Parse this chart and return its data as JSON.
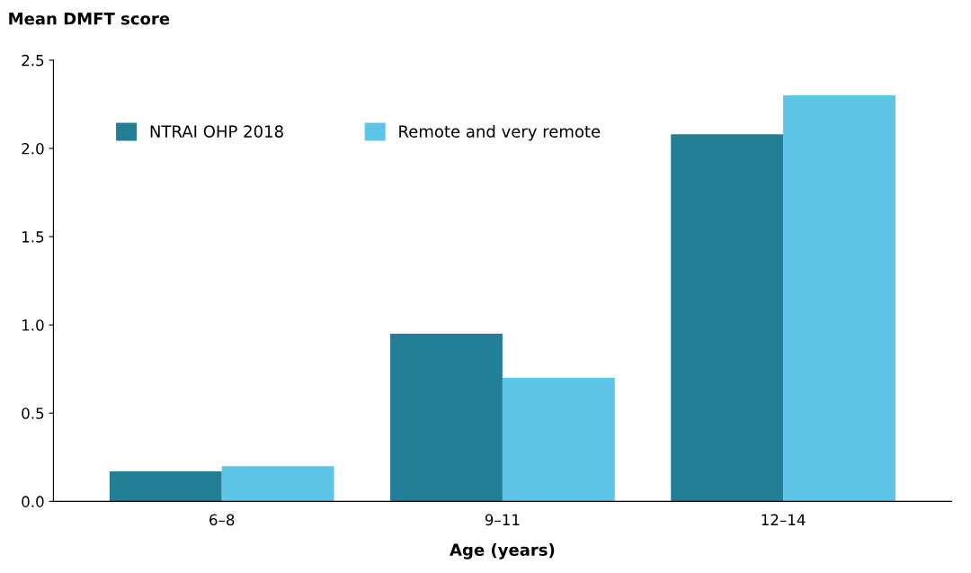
{
  "chart_data": {
    "type": "bar",
    "xlabel": "Age (years)",
    "ylabel": "Mean DMFT score",
    "categories": [
      "6–8",
      "9–11",
      "12–14"
    ],
    "series": [
      {
        "name": "NTRAI OHP 2018",
        "color": "#237f96",
        "values": [
          0.17,
          0.95,
          2.08
        ]
      },
      {
        "name": "Remote and very remote",
        "color": "#5fc5e6",
        "values": [
          0.2,
          0.7,
          2.3
        ]
      }
    ],
    "ylim": [
      0,
      2.5
    ],
    "yticks": [
      {
        "value": 0,
        "label": "0.0"
      },
      {
        "value": 0.5,
        "label": "0.5"
      },
      {
        "value": 1,
        "label": "1.0"
      },
      {
        "value": 1.5,
        "label": "1.5"
      },
      {
        "value": 2,
        "label": "2.0"
      },
      {
        "value": 2.5,
        "label": "2.5"
      }
    ],
    "grid": false,
    "legend": "top left"
  }
}
